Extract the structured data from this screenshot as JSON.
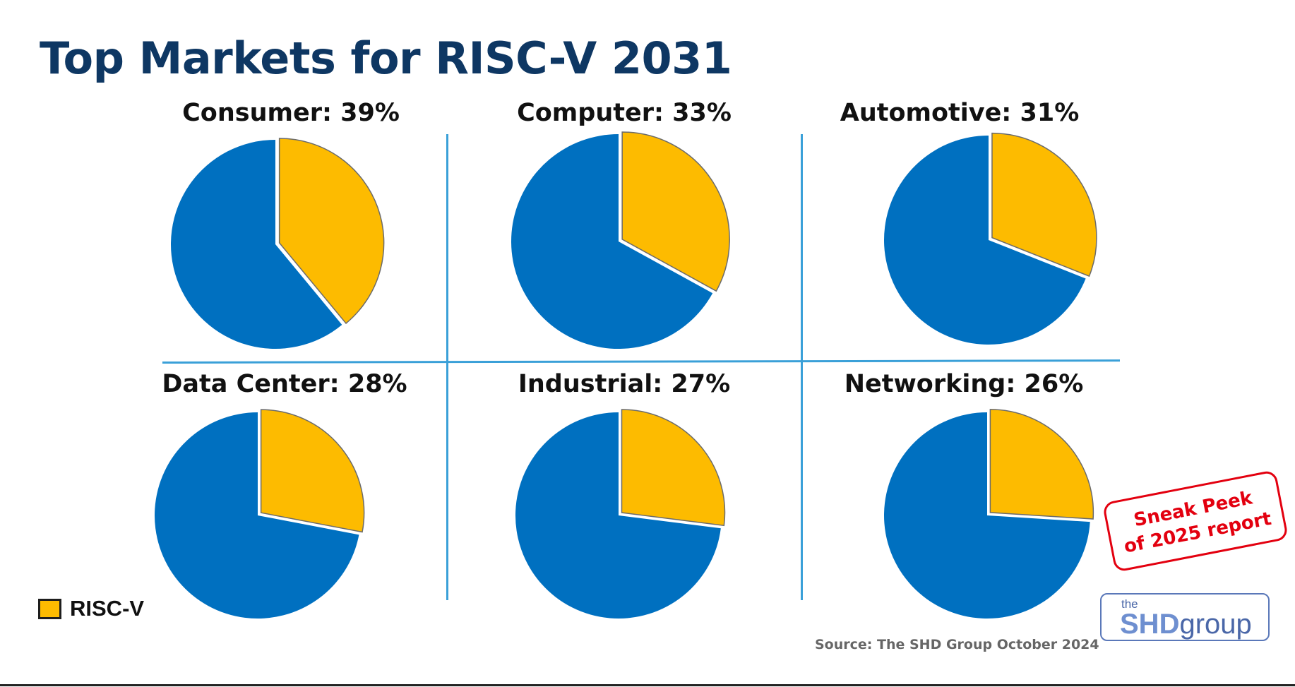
{
  "title": "Top Markets for RISC-V 2031",
  "colors": {
    "risc_v": "#fdbb00",
    "other": "#0070c0",
    "divider": "#3aa0d8"
  },
  "legend": {
    "label": "RISC-V"
  },
  "source": "Source: The SHD Group October 2024",
  "stamp": {
    "line1": "Sneak Peek",
    "line2": "of 2025 report"
  },
  "logo": {
    "the": "the",
    "shd": "SHD",
    "group": "group"
  },
  "chart_data": [
    {
      "type": "pie",
      "title": "Consumer: 39%",
      "categories": [
        "RISC-V",
        "Other"
      ],
      "values": [
        39,
        61
      ]
    },
    {
      "type": "pie",
      "title": "Computer: 33%",
      "categories": [
        "RISC-V",
        "Other"
      ],
      "values": [
        33,
        67
      ]
    },
    {
      "type": "pie",
      "title": "Automotive: 31%",
      "categories": [
        "RISC-V",
        "Other"
      ],
      "values": [
        31,
        69
      ]
    },
    {
      "type": "pie",
      "title": "Data Center: 28%",
      "categories": [
        "RISC-V",
        "Other"
      ],
      "values": [
        28,
        72
      ]
    },
    {
      "type": "pie",
      "title": "Industrial: 27%",
      "categories": [
        "RISC-V",
        "Other"
      ],
      "values": [
        27,
        73
      ]
    },
    {
      "type": "pie",
      "title": "Networking: 26%",
      "categories": [
        "RISC-V",
        "Other"
      ],
      "values": [
        26,
        74
      ]
    }
  ]
}
